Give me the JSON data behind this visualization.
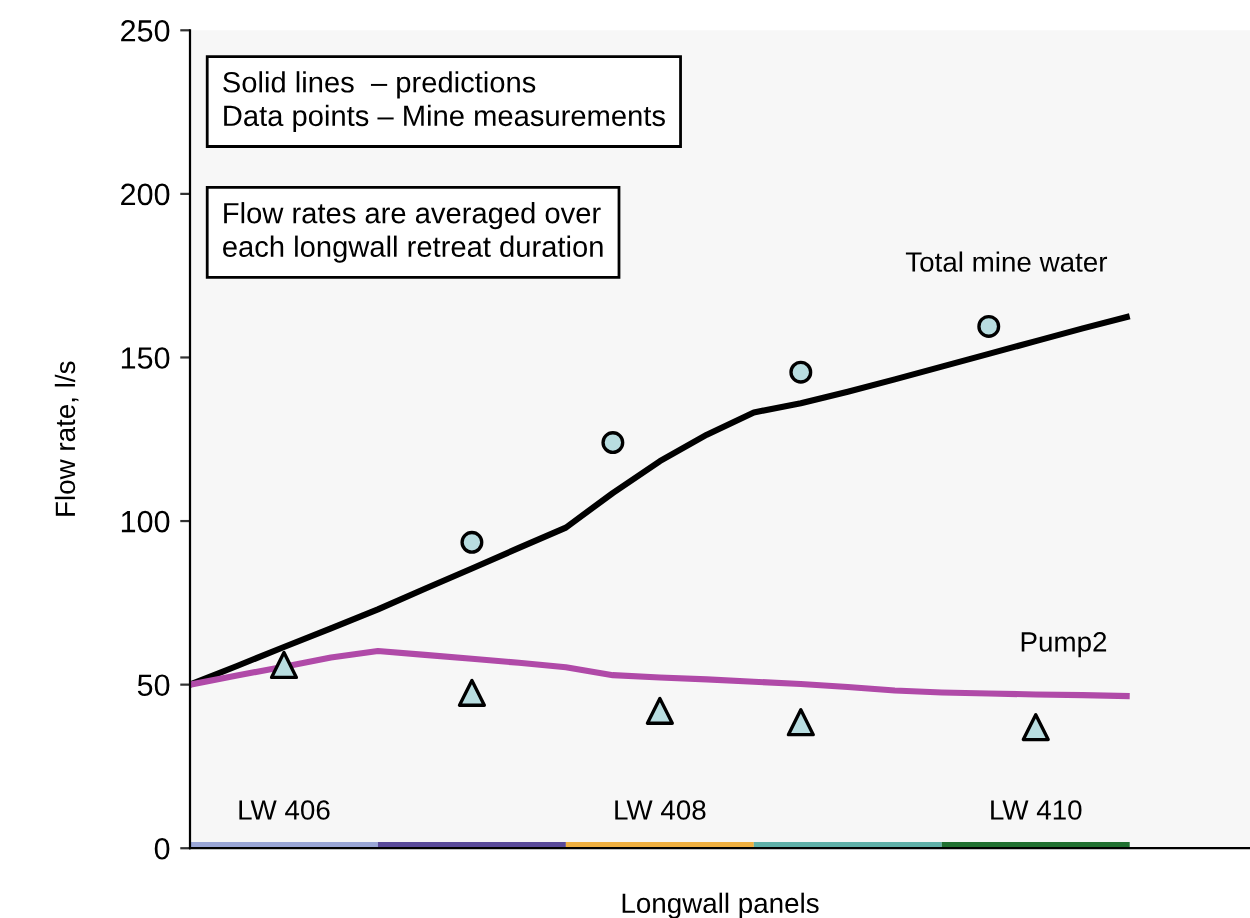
{
  "chart_data": {
    "type": "line",
    "xlabel": "Longwall panels",
    "ylabel": "Flow rate, l/s",
    "categories": [
      null,
      null,
      null,
      null,
      null,
      null,
      null,
      null,
      null,
      null,
      null,
      null,
      null,
      null,
      null,
      null,
      null,
      null,
      null,
      null,
      null
    ],
    "ylim": [
      0,
      250
    ],
    "yticks": [
      0,
      50,
      100,
      150,
      200,
      250
    ],
    "tick_labels": "y",
    "grid": false,
    "legend": false,
    "annotations": [
      "Solid lines  – predictions\nData points – Mine measurements",
      "Flow rates are averaged over\neach longwall retreat duration"
    ],
    "series": [
      {
        "name": "Total mine water",
        "color": "#000000",
        "values": [
          50,
          55.7,
          61.5,
          67.2,
          73,
          79.3,
          85.5,
          91.8,
          98,
          108.6,
          118.3,
          126.4,
          133.2,
          136,
          139.5,
          143.3,
          147.2,
          151.1,
          155,
          158.9,
          162.6
        ]
      },
      {
        "name": "Pump2",
        "color": "#b04aa8",
        "values": [
          50,
          52.8,
          55.5,
          58.3,
          60.3,
          59.1,
          57.9,
          56.7,
          55.3,
          52.9,
          52.2,
          51.6,
          50.9,
          50.2,
          49.3,
          48.2,
          47.6,
          47.3,
          47,
          46.8,
          46.5
        ]
      },
      {
        "type": "scatter",
        "color": "#b8dde0",
        "marker": "circle",
        "values": [
          null,
          null,
          null,
          null,
          null,
          null,
          93.5,
          null,
          null,
          124,
          null,
          null,
          null,
          145.5,
          null,
          null,
          null,
          159.5,
          null,
          null,
          null
        ]
      },
      {
        "type": "scatter",
        "color": "#b8dde0",
        "marker": "triangle",
        "values": [
          null,
          null,
          56,
          null,
          null,
          null,
          47.5,
          null,
          null,
          null,
          42,
          null,
          null,
          38.5,
          null,
          null,
          null,
          null,
          37,
          null,
          null
        ]
      },
      {
        "name": "LW 406",
        "color": "#9aa6d6",
        "values": [
          1,
          1,
          1,
          1,
          1,
          null,
          null,
          null,
          null,
          null,
          null,
          null,
          null,
          null,
          null,
          null,
          null,
          null,
          null,
          null,
          null
        ]
      },
      {
        "color": "#5a4a9a",
        "values": [
          null,
          null,
          null,
          null,
          1,
          1,
          1,
          1,
          1,
          null,
          null,
          null,
          null,
          null,
          null,
          null,
          null,
          null,
          null,
          null,
          null
        ]
      },
      {
        "name": "LW 408",
        "color": "#f0b040",
        "values": [
          null,
          null,
          null,
          null,
          null,
          null,
          null,
          null,
          1,
          1,
          1,
          1,
          1,
          null,
          null,
          null,
          null,
          null,
          null,
          null,
          null
        ]
      },
      {
        "color": "#5fb0a8",
        "values": [
          null,
          null,
          null,
          null,
          null,
          null,
          null,
          null,
          null,
          null,
          null,
          null,
          1,
          1,
          1,
          1,
          1,
          null,
          null,
          null,
          null
        ]
      },
      {
        "name": "LW 410",
        "color": "#207030",
        "values": [
          null,
          null,
          null,
          null,
          null,
          null,
          null,
          null,
          null,
          null,
          null,
          null,
          null,
          null,
          null,
          null,
          1,
          1,
          1,
          1,
          1
        ]
      }
    ]
  }
}
